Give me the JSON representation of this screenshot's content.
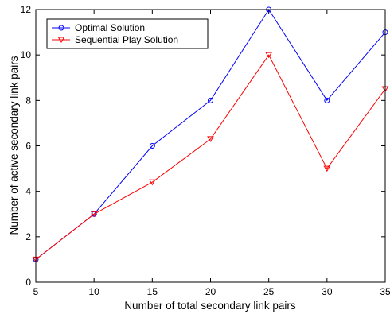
{
  "chart_data": {
    "type": "line",
    "title": "",
    "xlabel": "Number of total secondary link pairs",
    "ylabel": "Number of active secondary link pairs",
    "x": [
      5,
      10,
      15,
      20,
      25,
      30,
      35
    ],
    "xlim": [
      5,
      35
    ],
    "ylim": [
      0,
      12
    ],
    "xticks": [
      "5",
      "10",
      "15",
      "20",
      "25",
      "30",
      "35"
    ],
    "yticks": [
      "0",
      "2",
      "4",
      "6",
      "8",
      "10",
      "12"
    ],
    "grid": false,
    "legend_position": "top-left",
    "series": [
      {
        "name": "Optimal Solution",
        "values": [
          1,
          3,
          6,
          8,
          12,
          8,
          11
        ],
        "color": "#0000ff",
        "marker": "circle"
      },
      {
        "name": "Sequential Play Solution",
        "values": [
          1,
          3,
          4.4,
          6.3,
          10,
          5,
          8.5
        ],
        "color": "#ff0000",
        "marker": "triangle-down"
      }
    ]
  }
}
